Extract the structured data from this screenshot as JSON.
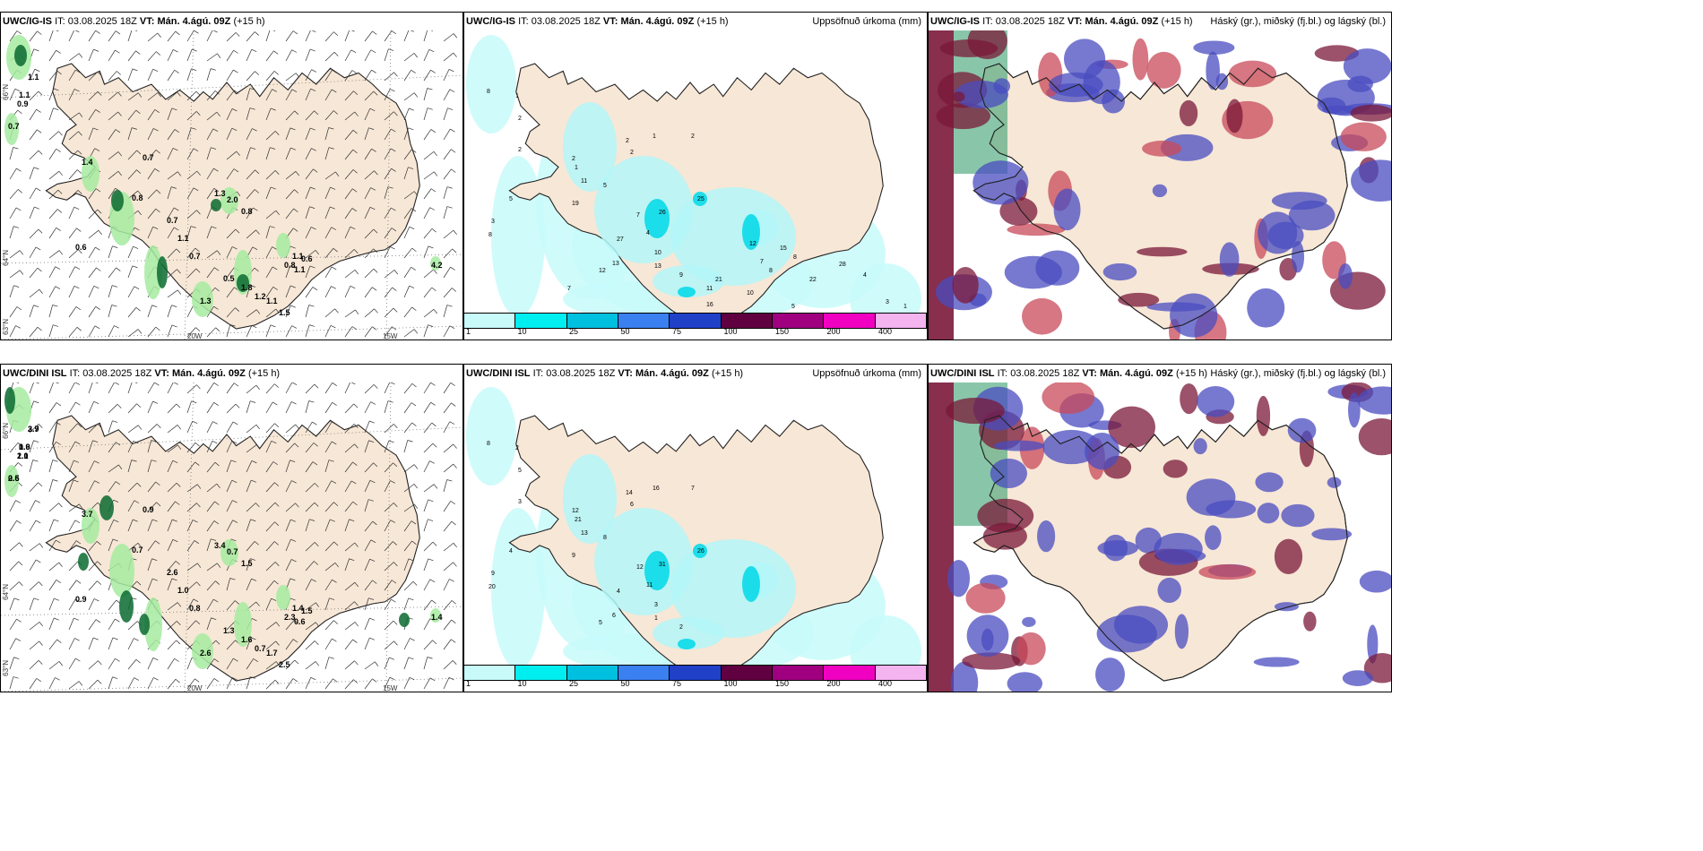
{
  "rows": [
    {
      "model": "UWC/IG-IS",
      "it_label": "IT:",
      "it_value": "03.08.2025 18Z",
      "vt_label": "VT:",
      "vt_value": "Mán. 4.ágú. 09Z",
      "lead": "(+15 h)"
    },
    {
      "model": "UWC/DINI ISL",
      "it_label": "IT:",
      "it_value": "03.08.2025 18Z",
      "vt_label": "VT:",
      "vt_value": "Mán. 4.ágú. 09Z",
      "lead": "(+15 h)"
    }
  ],
  "panel_titles": {
    "precip": "Uppsöfnuð úrkoma (mm)",
    "cloud": "Háský (gr.), miðský (fj.bl.) og lágský (bl.)"
  },
  "axis_labels": {
    "lat66": "66°N",
    "lat64": "64°N",
    "lat63": "63°N",
    "lon20": "20W",
    "lon15": "15W"
  },
  "precip_legend": {
    "ticks": [
      "1",
      "10",
      "25",
      "50",
      "75",
      "100",
      "150",
      "200",
      "400"
    ],
    "colors": [
      "#c8fafa",
      "#00eef0",
      "#00c0e0",
      "#3a80f0",
      "#2040c8",
      "#600040",
      "#a00080",
      "#f000c0",
      "#f4b4f0"
    ]
  },
  "panel1_values_top": [
    "1.1",
    "1.1",
    "0.9",
    "0.7",
    "1.4",
    "0.7",
    "0.8",
    "1.3",
    "2.0",
    "0.8",
    "0.7",
    "1.1",
    "0.7",
    "0.6",
    "1.1",
    "0.8",
    "0.6",
    "1.1",
    "4.2",
    "0.5",
    "1.8",
    "1.2",
    "1.1",
    "1.5",
    "1.3"
  ],
  "panel1_values_bottom": [
    "3.9",
    "0.6",
    "1.0",
    "0.6",
    "3.7",
    "0.9",
    "0.7",
    "3.4",
    "0.7",
    "1.5",
    "2.6",
    "1.0",
    "0.8",
    "0.9",
    "1.4",
    "2.3",
    "1.5",
    "0.6",
    "1.4",
    "1.3",
    "1.6",
    "0.7",
    "1.7",
    "2.5",
    "2.6",
    "2.7",
    "1.9",
    "2.1",
    "2.5"
  ],
  "panel2_values_top": [
    "8",
    "1",
    "2",
    "2",
    "5",
    "3",
    "8",
    "2",
    "1",
    "2",
    "2",
    "2",
    "1",
    "11",
    "5",
    "19",
    "7",
    "4",
    "26",
    "25",
    "27",
    "10",
    "12",
    "13",
    "13",
    "9",
    "11",
    "7",
    "12",
    "8",
    "21",
    "16",
    "10",
    "15",
    "8",
    "22",
    "28",
    "5",
    "4",
    "3",
    "2",
    "1",
    "7",
    "6"
  ],
  "panel2_values_bottom": [
    "8",
    "2",
    "5",
    "3",
    "4",
    "9",
    "20",
    "14",
    "16",
    "6",
    "7",
    "12",
    "21",
    "13",
    "8",
    "9",
    "12",
    "11",
    "31",
    "26",
    "4",
    "3",
    "5",
    "6",
    "1",
    "2"
  ]
}
